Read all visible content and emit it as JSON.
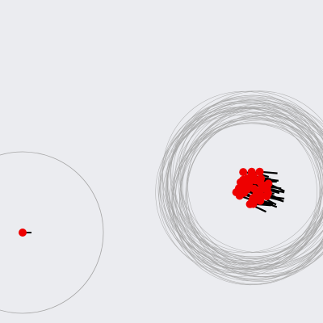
{
  "scene": {
    "background_color": "#ebecf0",
    "ring_color": "#a6a6a6",
    "agent_color": "#ee0000",
    "heading_color": "#000000"
  },
  "solo_agent": {
    "heading_deg": 0
  },
  "swarm": {
    "agent_count": 48,
    "heading_deg": 15
  }
}
